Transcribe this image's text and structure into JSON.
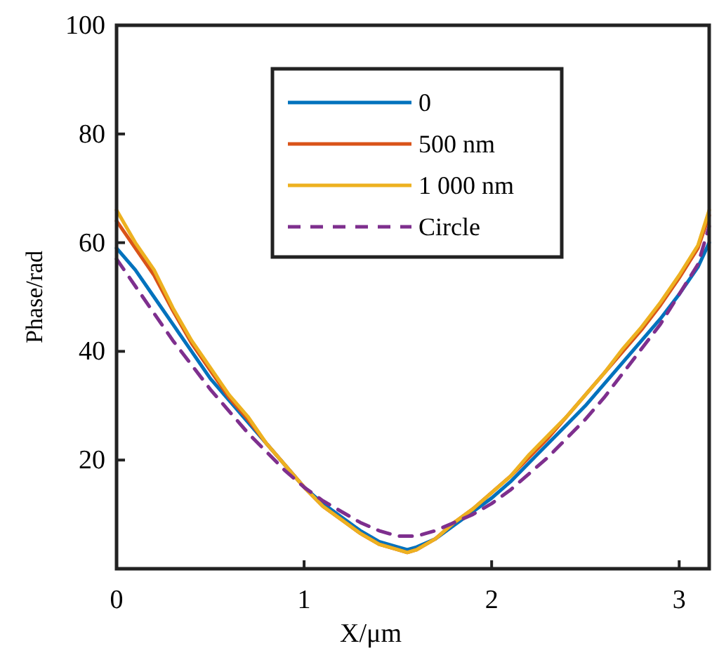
{
  "chart_data": {
    "type": "line",
    "xlabel": "X/μm",
    "ylabel": "Phase/rad",
    "xlim": [
      0,
      3.16
    ],
    "xticks": [
      0,
      1,
      2,
      3
    ],
    "ylim": [
      0,
      100
    ],
    "yticks": [
      20,
      40,
      60,
      80,
      100
    ],
    "grid": false,
    "legend": "top",
    "x": [
      0,
      0.1,
      0.2,
      0.3,
      0.4,
      0.5,
      0.6,
      0.7,
      0.8,
      0.9,
      1.0,
      1.1,
      1.2,
      1.3,
      1.4,
      1.5,
      1.55,
      1.6,
      1.7,
      1.8,
      1.9,
      2.0,
      2.1,
      2.2,
      2.3,
      2.4,
      2.5,
      2.6,
      2.7,
      2.8,
      2.9,
      3.0,
      3.1,
      3.16
    ],
    "series": [
      {
        "name": "0",
        "color": "#0072bd",
        "line_style": "solid",
        "values": [
          59,
          55,
          50,
          45,
          40,
          35,
          31,
          27,
          23,
          19,
          15,
          12,
          9.5,
          7,
          5,
          4,
          3.5,
          4,
          5.5,
          8,
          10.5,
          13,
          16,
          19.5,
          23,
          26.5,
          30,
          34,
          38,
          42,
          46,
          50.5,
          55.5,
          60
        ]
      },
      {
        "name": "500 nm",
        "color": "#d95319",
        "line_style": "solid",
        "values": [
          64,
          59,
          54,
          47.5,
          41.5,
          36.5,
          31.5,
          27.5,
          23,
          19,
          15,
          11.5,
          9,
          6.5,
          4.5,
          3.5,
          3,
          3.5,
          5.5,
          8.5,
          11,
          14,
          17,
          20.5,
          24,
          28,
          32,
          36,
          40,
          44,
          48.5,
          53.5,
          59,
          65
        ]
      },
      {
        "name": "1 000 nm",
        "color": "#edb120",
        "line_style": "solid",
        "values": [
          66,
          60,
          55,
          48,
          42,
          37,
          32,
          28,
          23,
          19,
          15,
          11.5,
          9,
          6.5,
          4.5,
          3.5,
          3,
          3.5,
          5.5,
          8.5,
          11,
          14,
          17,
          21,
          24.5,
          28,
          32,
          36,
          40.5,
          44.5,
          49,
          54,
          59.5,
          66
        ]
      },
      {
        "name": "Circle",
        "color": "#7e2f8e",
        "line_style": "dashed",
        "values": [
          57,
          52,
          47,
          42,
          37.5,
          33,
          29,
          25,
          21.5,
          18,
          15,
          12.5,
          10.5,
          8.5,
          7,
          6,
          6,
          6,
          7,
          8.5,
          10,
          12,
          14.5,
          17.5,
          20.5,
          24,
          27.5,
          31.5,
          36,
          40.5,
          45,
          50.5,
          56,
          63
        ]
      }
    ]
  }
}
